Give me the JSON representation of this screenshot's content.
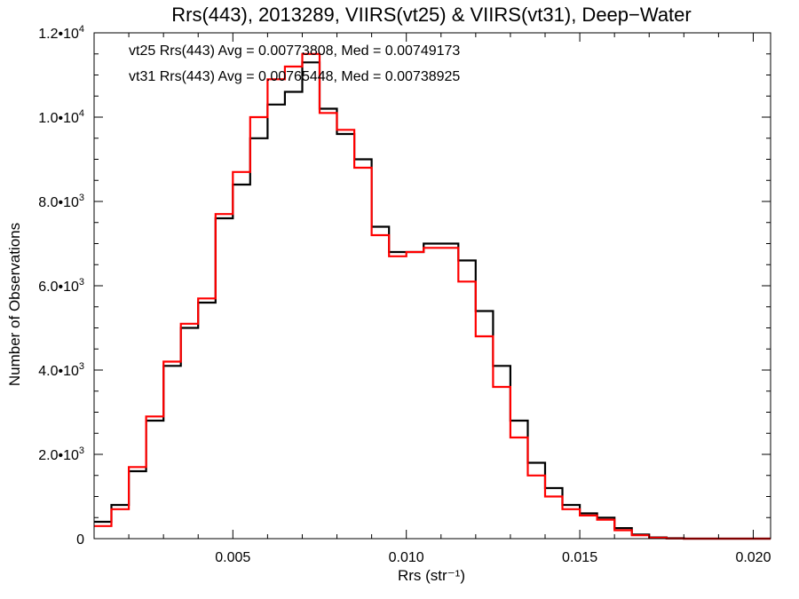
{
  "chart_data": {
    "type": "line",
    "step": true,
    "title": "Rrs(443), 2013289, VIIRS(vt25) & VIIRS(vt31), Deep−Water",
    "xlabel": "Rrs (str⁻¹)",
    "ylabel": "Number of Observations",
    "xlim": [
      0.001,
      0.0205
    ],
    "ylim": [
      0,
      12000
    ],
    "x_ticks": [
      {
        "value": 0.005,
        "label": "0.005"
      },
      {
        "value": 0.01,
        "label": "0.010"
      },
      {
        "value": 0.015,
        "label": "0.015"
      },
      {
        "value": 0.02,
        "label": "0.020"
      }
    ],
    "y_ticks": [
      {
        "value": 0,
        "mant": "0",
        "exp": ""
      },
      {
        "value": 2000,
        "mant": "2.0•10",
        "exp": "3"
      },
      {
        "value": 4000,
        "mant": "4.0•10",
        "exp": "3"
      },
      {
        "value": 6000,
        "mant": "6.0•10",
        "exp": "3"
      },
      {
        "value": 8000,
        "mant": "8.0•10",
        "exp": "3"
      },
      {
        "value": 10000,
        "mant": "1.0•10",
        "exp": "4"
      },
      {
        "value": 12000,
        "mant": "1.2•10",
        "exp": "4"
      }
    ],
    "grid": false,
    "legend_position": "top-left",
    "annotations": [
      {
        "text": "vt25 Rrs(443) Avg = 0.00773808, Med = 0.00749173",
        "color": "#000000"
      },
      {
        "text": "vt31 Rrs(443) Avg = 0.00765448, Med = 0.00738925",
        "color": "#ff0000"
      }
    ],
    "series": [
      {
        "color": "#000000",
        "x": [
          0.001,
          0.0015,
          0.002,
          0.0025,
          0.003,
          0.0035,
          0.004,
          0.0045,
          0.005,
          0.0055,
          0.006,
          0.0065,
          0.007,
          0.0075,
          0.008,
          0.0085,
          0.009,
          0.0095,
          0.01,
          0.0105,
          0.011,
          0.0115,
          0.012,
          0.0125,
          0.013,
          0.0135,
          0.014,
          0.0145,
          0.015,
          0.0155,
          0.016,
          0.0165,
          0.017,
          0.0175,
          0.018,
          0.019,
          0.0205
        ],
        "y": [
          400,
          800,
          1600,
          2800,
          4100,
          5000,
          5600,
          7600,
          8400,
          9500,
          10300,
          10600,
          11300,
          10200,
          9600,
          9000,
          7400,
          6800,
          6800,
          7000,
          7000,
          6600,
          5400,
          4100,
          2800,
          1800,
          1200,
          800,
          600,
          500,
          250,
          100,
          30,
          10,
          0,
          0,
          0
        ]
      },
      {
        "color": "#ff0000",
        "x": [
          0.001,
          0.0015,
          0.002,
          0.0025,
          0.003,
          0.0035,
          0.004,
          0.0045,
          0.005,
          0.0055,
          0.006,
          0.0065,
          0.007,
          0.0075,
          0.008,
          0.0085,
          0.009,
          0.0095,
          0.01,
          0.0105,
          0.011,
          0.0115,
          0.012,
          0.0125,
          0.013,
          0.0135,
          0.014,
          0.0145,
          0.015,
          0.0155,
          0.016,
          0.0165,
          0.017,
          0.0175,
          0.018,
          0.019,
          0.0205
        ],
        "y": [
          300,
          700,
          1700,
          2900,
          4200,
          5100,
          5700,
          7700,
          8700,
          10000,
          10900,
          11200,
          11500,
          10100,
          9700,
          8800,
          7200,
          6700,
          6800,
          6900,
          6900,
          6100,
          4800,
          3600,
          2400,
          1500,
          1000,
          700,
          550,
          450,
          200,
          80,
          20,
          5,
          0,
          0,
          0
        ]
      }
    ]
  }
}
